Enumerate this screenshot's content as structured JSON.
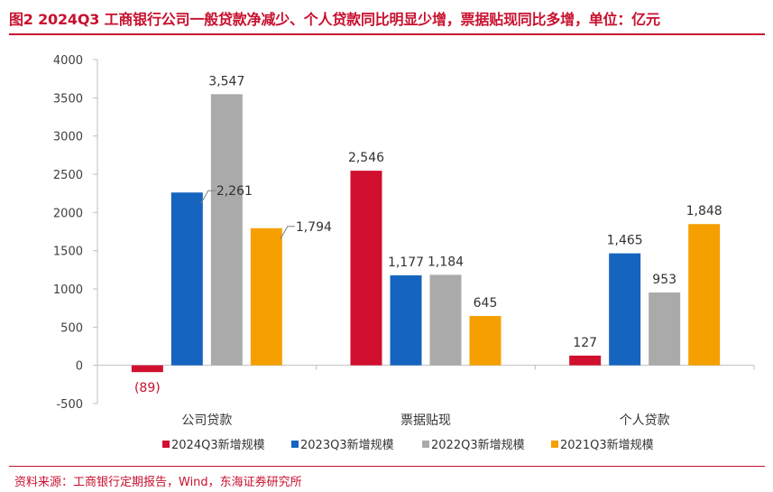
{
  "title": "图2  2024Q3 工商银行公司一般贷款净减少、个人贷款同比明显少增，票据贴现同比多增，单位：亿元",
  "source": "资料来源：工商银行定期报告，Wind，东海证券研究所",
  "colors": {
    "accent": "#c8102e",
    "series": [
      "#d0102e",
      "#1565c0",
      "#aaaaaa",
      "#f5a000"
    ]
  },
  "chart_data": {
    "type": "bar",
    "categories": [
      "公司贷款",
      "票据贴现",
      "个人贷款"
    ],
    "series": [
      {
        "name": "2024Q3新增规模",
        "values": [
          -89,
          2546,
          127
        ],
        "labels": [
          "(89)",
          "2,546",
          "127"
        ]
      },
      {
        "name": "2023Q3新增规模",
        "values": [
          2261,
          1177,
          1465
        ],
        "labels": [
          "2,261",
          "1,177",
          "1,465"
        ]
      },
      {
        "name": "2022Q3新增规模",
        "values": [
          3547,
          1184,
          953
        ],
        "labels": [
          "3,547",
          "1,184",
          "953"
        ]
      },
      {
        "name": "2021Q3新增规模",
        "values": [
          1794,
          645,
          1848
        ],
        "labels": [
          "1,794",
          "645",
          "1,848"
        ]
      }
    ],
    "ylim": [
      -500,
      4000
    ],
    "yticks": [
      4000,
      3500,
      3000,
      2500,
      2000,
      1500,
      1000,
      500,
      0,
      -500
    ],
    "xlabel": "",
    "ylabel": "",
    "legend_position": "bottom",
    "grid": false
  }
}
